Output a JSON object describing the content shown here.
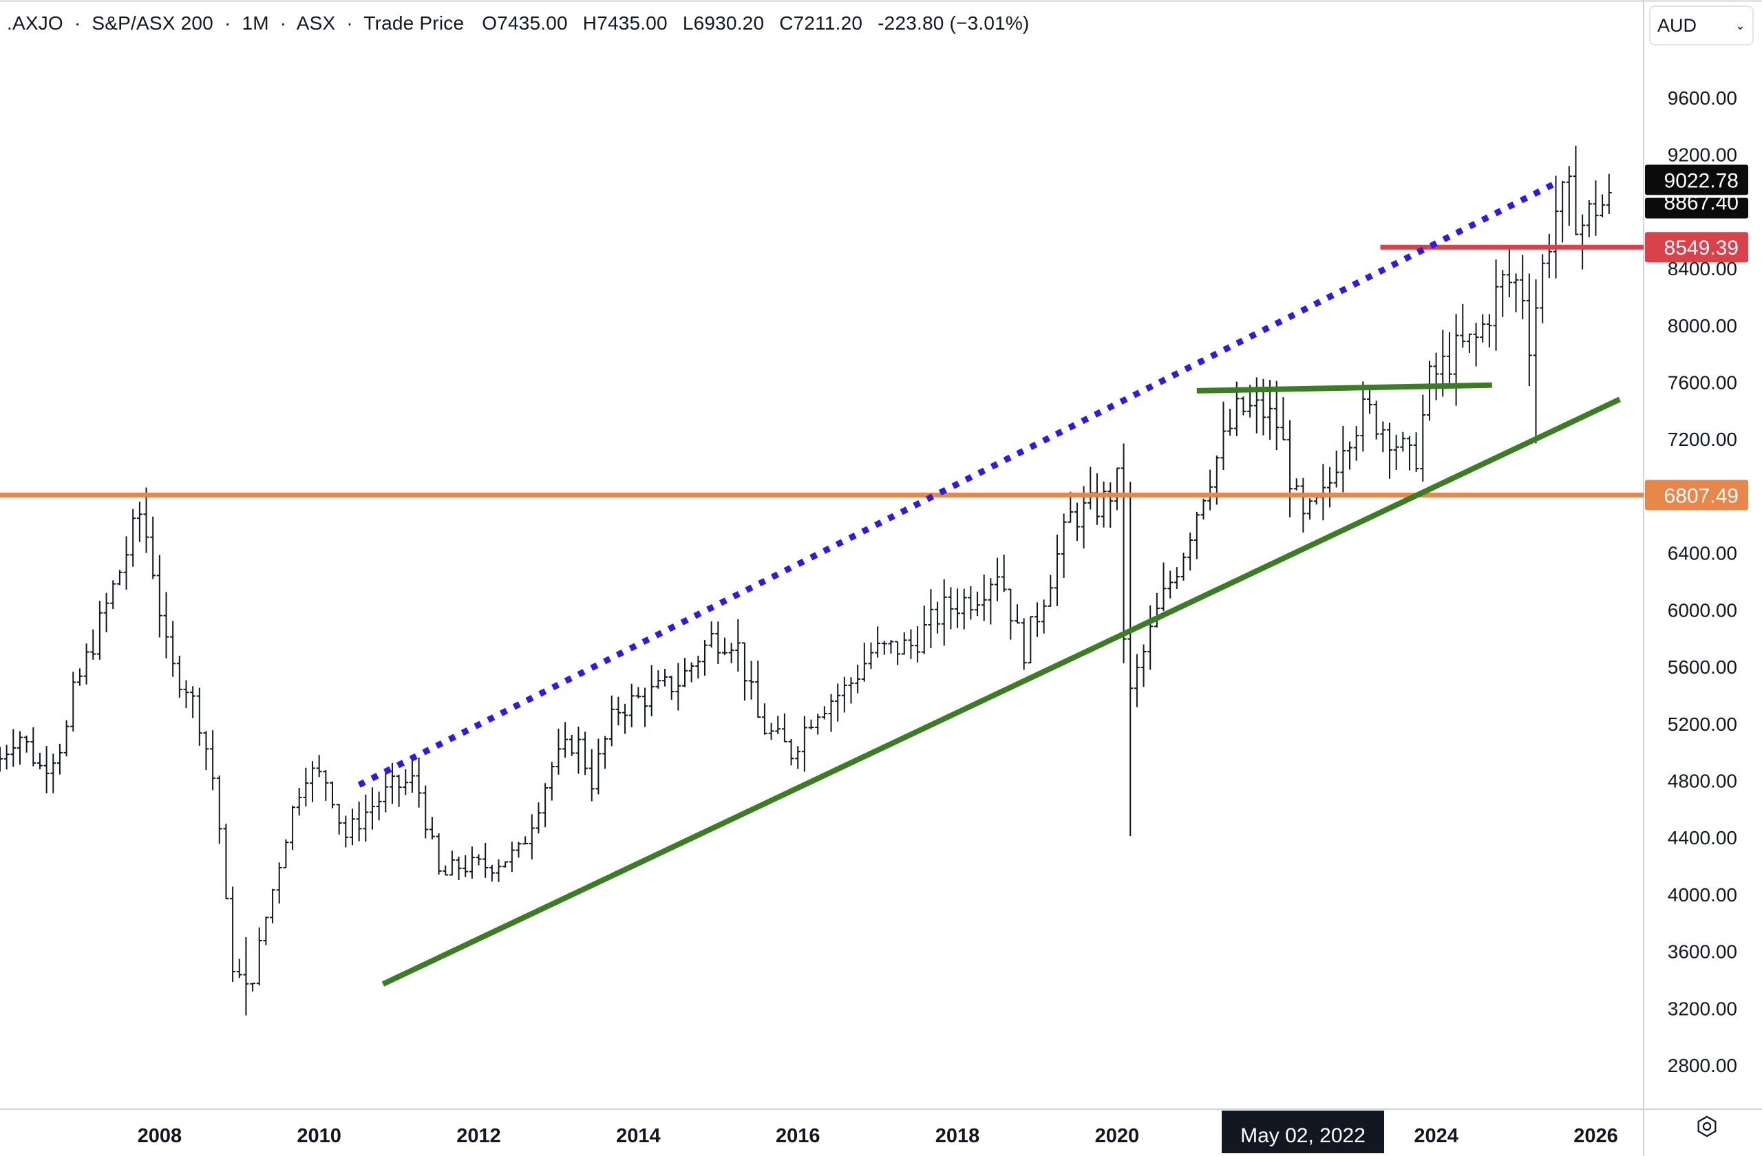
{
  "header": {
    "symbol": ".AXJO",
    "name": "S&P/ASX 200",
    "interval": "1M",
    "exchange": "ASX",
    "price_type": "Trade Price",
    "open": "O7435.00",
    "high": "H7435.00",
    "low": "L6930.20",
    "close": "C7211.20",
    "change": "-223.80 (−3.01%)",
    "sep": "·"
  },
  "currency": {
    "label": "AUD"
  },
  "colors": {
    "candle": "#131722",
    "blue_trend": "#2b1be6",
    "green_trend": "#3a7d22",
    "orange_level": "#e8874a",
    "red_level": "#d9424a",
    "price_tag_dark": "#0b0b0b",
    "crosshair_tag": "#131722"
  },
  "icons": {
    "settings": "gear-icon",
    "dropdown": "chevron-down-icon"
  },
  "chart_data": {
    "type": "ohlc",
    "title": "",
    "xlabel": "",
    "ylabel": "",
    "ylim": [
      2400,
      10000
    ],
    "xlim": [
      2006.0,
      2026.6
    ],
    "y_ticks": [
      "9600.00",
      "9200.00",
      "8400.00",
      "8000.00",
      "7600.00",
      "7200.00",
      "6400.00",
      "6000.00",
      "5600.00",
      "5200.00",
      "4800.00",
      "4400.00",
      "4000.00",
      "3600.00",
      "3200.00",
      "2800.00"
    ],
    "x_ticks": [
      "2008",
      "2010",
      "2012",
      "2014",
      "2016",
      "2018",
      "2020",
      "2024",
      "2026"
    ],
    "crosshair_label": "May 02, 2022",
    "crosshair_x": 2022.33,
    "price_tags": [
      {
        "label": "9022.78",
        "value": 9022.78,
        "kind": "dark"
      },
      {
        "label": "8867.40",
        "value": 8867.4,
        "kind": "dark_partial"
      },
      {
        "label": "8549.39",
        "value": 8549.39,
        "kind": "red"
      },
      {
        "label": "6807.49",
        "value": 6807.49,
        "kind": "orange"
      }
    ],
    "levels": [
      {
        "name": "",
        "value": 6807.49,
        "x_start": 2006.0,
        "x_end": 2026.6,
        "color_key": "orange_level"
      },
      {
        "name": "",
        "value": 8549.39,
        "x_start": 2023.3,
        "x_end": 2026.6,
        "color_key": "red_level"
      }
    ],
    "trendlines": [
      {
        "style": "dotted",
        "color_key": "blue_trend",
        "x1": 2010.5,
        "y1": 4770,
        "x2": 2025.5,
        "y2": 9000
      },
      {
        "style": "solid",
        "color_key": "green_trend",
        "x1": 2010.8,
        "y1": 3370,
        "x2": 2026.3,
        "y2": 7480
      },
      {
        "style": "solid",
        "color_key": "green_trend",
        "x1": 2021.0,
        "y1": 7540,
        "x2": 2024.7,
        "y2": 7580
      }
    ],
    "anchors": [
      {
        "t": 2006.0,
        "v": 4880
      },
      {
        "t": 2006.3,
        "v": 5150
      },
      {
        "t": 2006.6,
        "v": 4880
      },
      {
        "t": 2006.9,
        "v": 5100
      },
      {
        "t": 2007.0,
        "v": 5400
      },
      {
        "t": 2007.4,
        "v": 6000
      },
      {
        "t": 2007.6,
        "v": 6300
      },
      {
        "t": 2007.85,
        "v": 6700
      },
      {
        "t": 2008.0,
        "v": 6300
      },
      {
        "t": 2008.2,
        "v": 5600
      },
      {
        "t": 2008.4,
        "v": 5500
      },
      {
        "t": 2008.6,
        "v": 5200
      },
      {
        "t": 2008.8,
        "v": 4700
      },
      {
        "t": 2008.9,
        "v": 4000
      },
      {
        "t": 2009.0,
        "v": 3500
      },
      {
        "t": 2009.2,
        "v": 3300
      },
      {
        "t": 2009.4,
        "v": 3800
      },
      {
        "t": 2009.7,
        "v": 4500
      },
      {
        "t": 2009.9,
        "v": 4870
      },
      {
        "t": 2010.2,
        "v": 4800
      },
      {
        "t": 2010.4,
        "v": 4400
      },
      {
        "t": 2010.7,
        "v": 4600
      },
      {
        "t": 2011.0,
        "v": 4750
      },
      {
        "t": 2011.3,
        "v": 4800
      },
      {
        "t": 2011.6,
        "v": 4100
      },
      {
        "t": 2011.8,
        "v": 4200
      },
      {
        "t": 2012.2,
        "v": 4200
      },
      {
        "t": 2012.6,
        "v": 4300
      },
      {
        "t": 2013.0,
        "v": 4900
      },
      {
        "t": 2013.3,
        "v": 5100
      },
      {
        "t": 2013.5,
        "v": 4800
      },
      {
        "t": 2013.8,
        "v": 5300
      },
      {
        "t": 2014.2,
        "v": 5400
      },
      {
        "t": 2014.6,
        "v": 5500
      },
      {
        "t": 2015.0,
        "v": 5800
      },
      {
        "t": 2015.3,
        "v": 5800
      },
      {
        "t": 2015.6,
        "v": 5200
      },
      {
        "t": 2016.0,
        "v": 5000
      },
      {
        "t": 2016.3,
        "v": 5300
      },
      {
        "t": 2016.7,
        "v": 5450
      },
      {
        "t": 2017.0,
        "v": 5700
      },
      {
        "t": 2017.5,
        "v": 5750
      },
      {
        "t": 2017.9,
        "v": 6000
      },
      {
        "t": 2018.3,
        "v": 6100
      },
      {
        "t": 2018.6,
        "v": 6300
      },
      {
        "t": 2018.9,
        "v": 5700
      },
      {
        "t": 2019.1,
        "v": 6000
      },
      {
        "t": 2019.5,
        "v": 6650
      },
      {
        "t": 2019.9,
        "v": 6750
      },
      {
        "t": 2020.1,
        "v": 6900
      },
      {
        "t": 2020.2,
        "v": 5300
      },
      {
        "t": 2020.3,
        "v": 5500
      },
      {
        "t": 2020.6,
        "v": 6000
      },
      {
        "t": 2020.9,
        "v": 6400
      },
      {
        "t": 2021.2,
        "v": 6900
      },
      {
        "t": 2021.6,
        "v": 7400
      },
      {
        "t": 2021.9,
        "v": 7400
      },
      {
        "t": 2022.1,
        "v": 7300
      },
      {
        "t": 2022.4,
        "v": 6600
      },
      {
        "t": 2022.7,
        "v": 6800
      },
      {
        "t": 2022.9,
        "v": 7200
      },
      {
        "t": 2023.2,
        "v": 7400
      },
      {
        "t": 2023.5,
        "v": 7250
      },
      {
        "t": 2023.8,
        "v": 7000
      },
      {
        "t": 2024.0,
        "v": 7600
      },
      {
        "t": 2024.3,
        "v": 7800
      },
      {
        "t": 2024.6,
        "v": 7900
      },
      {
        "t": 2024.9,
        "v": 8300
      },
      {
        "t": 2025.15,
        "v": 8300
      },
      {
        "t": 2025.25,
        "v": 7900
      },
      {
        "t": 2025.45,
        "v": 8500
      },
      {
        "t": 2025.6,
        "v": 8850
      },
      {
        "t": 2025.75,
        "v": 8900
      },
      {
        "t": 2025.9,
        "v": 8700
      },
      {
        "t": 2026.1,
        "v": 8850
      }
    ],
    "extreme_bars": [
      {
        "t": 2007.85,
        "high": 6860,
        "low": 6400
      },
      {
        "t": 2009.1,
        "high": 3700,
        "low": 3150
      },
      {
        "t": 2020.2,
        "high": 6900,
        "low": 4410
      },
      {
        "t": 2025.25,
        "high": 8000,
        "low": 7170
      },
      {
        "t": 2025.7,
        "high": 9120,
        "low": 8700
      }
    ]
  }
}
